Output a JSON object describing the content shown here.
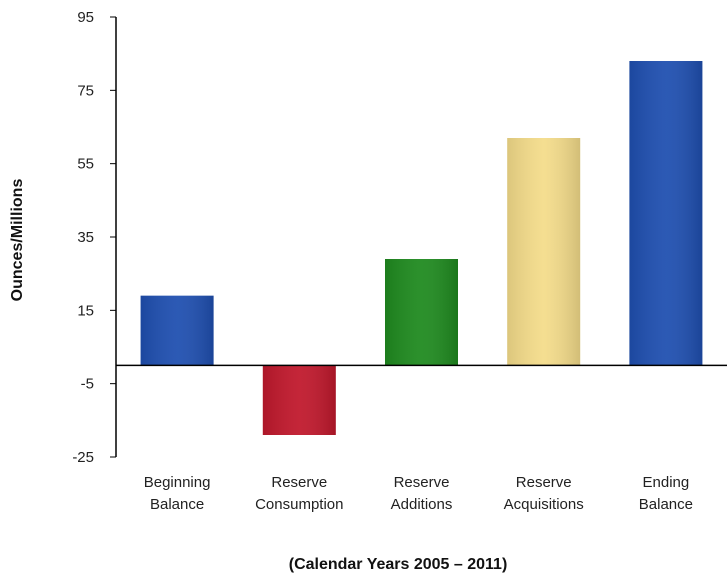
{
  "chart_data": {
    "type": "bar",
    "categories": [
      [
        "Beginning",
        "Balance"
      ],
      [
        "Reserve",
        "Consumption"
      ],
      [
        "Reserve",
        "Additions"
      ],
      [
        "Reserve",
        "Acquisitions"
      ],
      [
        "Ending",
        "Balance"
      ]
    ],
    "values": [
      19,
      -19,
      29,
      62,
      83
    ],
    "colors": [
      "#1f4fb0",
      "#c0182c",
      "#1f8a1f",
      "#f4dc8a",
      "#1f4fb0"
    ],
    "title": "",
    "xlabel": "(Calendar Years 2005 – 2011)",
    "ylabel": "Ounces/Millions",
    "ylim": [
      -25,
      95
    ],
    "yticks": [
      95,
      75,
      55,
      35,
      15,
      -5,
      -25
    ],
    "grid": false,
    "legend": "none"
  }
}
